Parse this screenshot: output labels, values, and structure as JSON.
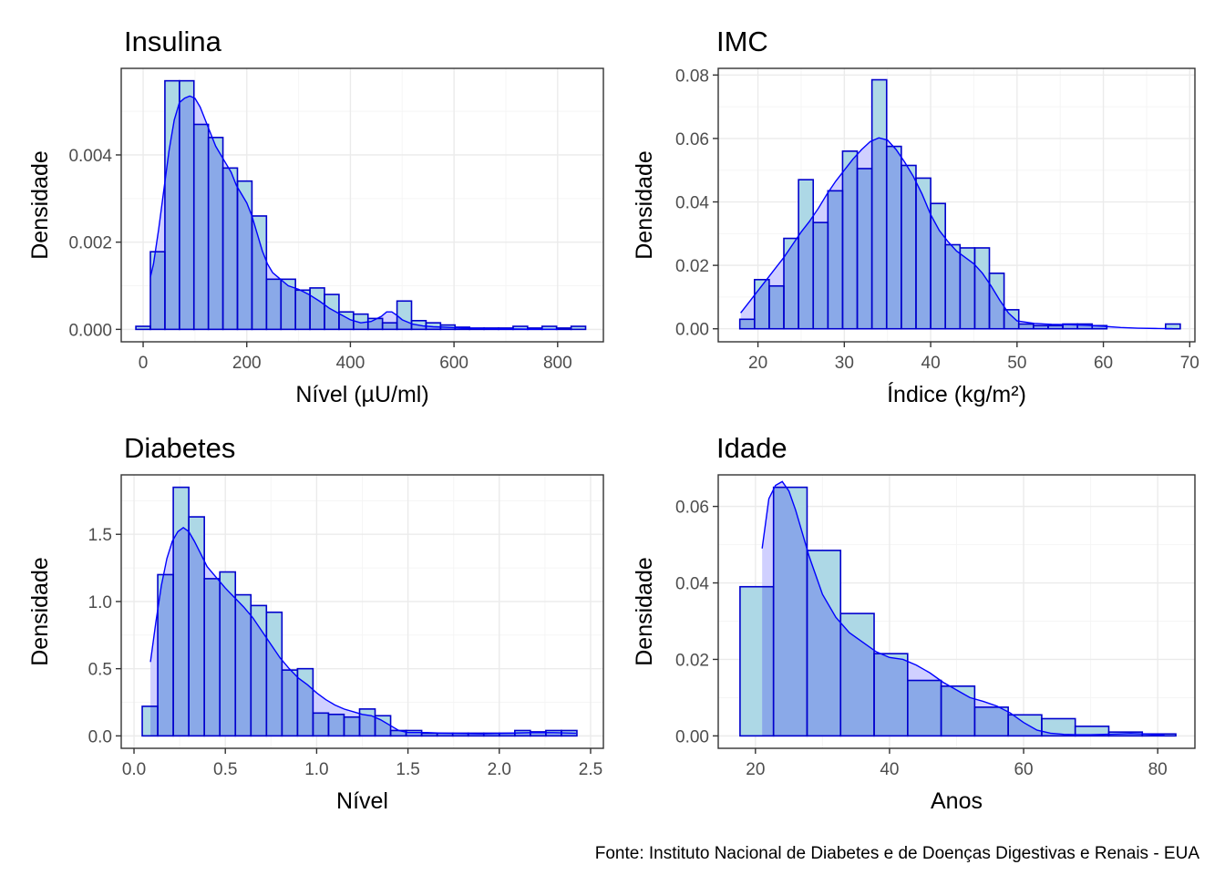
{
  "caption": "Fonte: Instituto Nacional de Diabetes e de Doenças Digestivas e Renais - EUA",
  "colors": {
    "bar_fill_outside": "#add8e6",
    "bar_fill_overlap": "#8aa9e8",
    "density_line": "#0000ff",
    "density_fill": "#c8c8ff",
    "bar_outline": "#0000cd",
    "grid_major": "#ebebeb",
    "grid_minor": "#f5f5f5",
    "panel_border": "#333333"
  },
  "chart_data": [
    {
      "type": "bar",
      "title": "Insulina",
      "xlabel": "Nível (µU/ml)",
      "ylabel": "Densidade",
      "xlim": [
        -42.3,
        888.3
      ],
      "ylim": [
        -0.000285,
        0.005985
      ],
      "xticks": [
        0,
        200,
        400,
        600,
        800
      ],
      "xtick_labels": [
        "0",
        "200",
        "400",
        "600",
        "800"
      ],
      "yticks": [
        0,
        0.002,
        0.004
      ],
      "ytick_labels": [
        "0.000",
        "0.002",
        "0.004"
      ],
      "bins": [
        [
          -14,
          14
        ],
        [
          14,
          42
        ],
        [
          42,
          70
        ],
        [
          70,
          98
        ],
        [
          98,
          126
        ],
        [
          126,
          154
        ],
        [
          154,
          182
        ],
        [
          182,
          210
        ],
        [
          210,
          238
        ],
        [
          238,
          266
        ],
        [
          266,
          294
        ],
        [
          294,
          322
        ],
        [
          322,
          350
        ],
        [
          350,
          378
        ],
        [
          378,
          406
        ],
        [
          406,
          434
        ],
        [
          434,
          462
        ],
        [
          462,
          490
        ],
        [
          490,
          518
        ],
        [
          518,
          546
        ],
        [
          546,
          574
        ],
        [
          574,
          602
        ],
        [
          602,
          630
        ],
        [
          630,
          658
        ],
        [
          658,
          686
        ],
        [
          686,
          714
        ],
        [
          714,
          742
        ],
        [
          742,
          770
        ],
        [
          770,
          798
        ],
        [
          798,
          826
        ],
        [
          826,
          854
        ]
      ],
      "values": [
        7e-05,
        0.00178,
        0.0057,
        0.0057,
        0.0047,
        0.0044,
        0.0037,
        0.0034,
        0.0026,
        0.00115,
        0.00115,
        0.0009,
        0.00095,
        0.0008,
        0.0004,
        0.00035,
        0.00025,
        0.00015,
        0.00065,
        0.0002,
        0.00015,
        0.0001,
        5e-05,
        3e-05,
        3e-05,
        3e-05,
        7e-05,
        3e-05,
        7e-05,
        3e-05,
        7e-05
      ],
      "density": {
        "x": [
          14,
          20,
          30,
          40,
          50,
          60,
          70,
          80,
          90,
          100,
          110,
          120,
          130,
          140,
          150,
          160,
          170,
          180,
          190,
          200,
          210,
          220,
          230,
          240,
          250,
          260,
          270,
          280,
          300,
          320,
          340,
          360,
          380,
          400,
          420,
          440,
          460,
          470,
          480,
          490,
          500,
          520,
          540,
          560,
          580,
          600,
          620,
          650,
          700,
          750,
          800
        ],
        "y": [
          0.0012,
          0.0015,
          0.0023,
          0.0032,
          0.0041,
          0.0048,
          0.0052,
          0.0053,
          0.00535,
          0.0053,
          0.0051,
          0.0048,
          0.0045,
          0.0042,
          0.004,
          0.0038,
          0.0036,
          0.0033,
          0.0031,
          0.0029,
          0.0026,
          0.0022,
          0.0018,
          0.0015,
          0.0013,
          0.0012,
          0.0011,
          0.001,
          0.00092,
          0.0008,
          0.00065,
          0.00048,
          0.00035,
          0.00022,
          0.00015,
          0.00018,
          0.0003,
          0.0004,
          0.0004,
          0.00032,
          0.00022,
          0.00012,
          8e-05,
          6e-05,
          5e-05,
          4e-05,
          3e-05,
          2e-05,
          1e-05,
          5e-06,
          2e-06
        ]
      }
    },
    {
      "type": "bar",
      "title": "IMC",
      "xlabel": "Índice (kg/m²)",
      "ylabel": "Densidade",
      "xlim": [
        15.4,
        70.6
      ],
      "ylim": [
        -0.0041,
        0.0821
      ],
      "xticks": [
        20,
        30,
        40,
        50,
        60,
        70
      ],
      "xtick_labels": [
        "20",
        "30",
        "40",
        "50",
        "60",
        "70"
      ],
      "yticks": [
        0,
        0.02,
        0.04,
        0.06,
        0.08
      ],
      "ytick_labels": [
        "0.00",
        "0.02",
        "0.04",
        "0.06",
        "0.08"
      ],
      "bins": [
        [
          17.9,
          19.6
        ],
        [
          19.6,
          21.3
        ],
        [
          21.3,
          23.0
        ],
        [
          23.0,
          24.7
        ],
        [
          24.7,
          26.4
        ],
        [
          26.4,
          28.1
        ],
        [
          28.1,
          29.8
        ],
        [
          29.8,
          31.5
        ],
        [
          31.5,
          33.2
        ],
        [
          33.2,
          34.9
        ],
        [
          34.9,
          36.6
        ],
        [
          36.6,
          38.3
        ],
        [
          38.3,
          40.0
        ],
        [
          40.0,
          41.7
        ],
        [
          41.7,
          43.4
        ],
        [
          43.4,
          45.1
        ],
        [
          45.1,
          46.8
        ],
        [
          46.8,
          48.5
        ],
        [
          48.5,
          50.2
        ],
        [
          50.2,
          51.9
        ],
        [
          51.9,
          53.6
        ],
        [
          53.6,
          55.3
        ],
        [
          55.3,
          57.0
        ],
        [
          57.0,
          58.7
        ],
        [
          58.7,
          60.4
        ],
        [
          60.4,
          62.1
        ],
        [
          62.1,
          63.8
        ],
        [
          63.8,
          65.5
        ],
        [
          65.5,
          67.2
        ],
        [
          67.2,
          68.9
        ]
      ],
      "values": [
        0.003,
        0.0155,
        0.0135,
        0.0285,
        0.047,
        0.0335,
        0.0435,
        0.056,
        0.0505,
        0.0785,
        0.0575,
        0.0515,
        0.0475,
        0.0395,
        0.0265,
        0.0255,
        0.0255,
        0.0175,
        0.006,
        0.0015,
        0.001,
        0.001,
        0.0015,
        0.0015,
        0.001,
        0.0,
        0.0,
        0.0,
        0.0,
        0.0015
      ],
      "density": {
        "x": [
          18,
          19,
          20,
          21,
          22,
          23,
          24,
          25,
          26,
          27,
          28,
          29,
          30,
          31,
          32,
          33,
          34,
          35,
          36,
          37,
          38,
          39,
          40,
          41,
          42,
          43,
          44,
          45,
          46,
          47,
          48,
          49,
          50,
          52,
          54,
          56,
          58,
          60,
          62,
          64,
          66,
          68
        ],
        "y": [
          0.005,
          0.0085,
          0.012,
          0.0155,
          0.019,
          0.0225,
          0.0265,
          0.0305,
          0.034,
          0.038,
          0.0425,
          0.0465,
          0.05,
          0.0535,
          0.0565,
          0.059,
          0.0602,
          0.0595,
          0.0565,
          0.0525,
          0.048,
          0.0425,
          0.036,
          0.031,
          0.0275,
          0.0245,
          0.0225,
          0.0205,
          0.0175,
          0.0135,
          0.009,
          0.005,
          0.0025,
          0.0017,
          0.0014,
          0.0013,
          0.0011,
          0.0008,
          0.0004,
          0.0002,
          0.0001,
          5e-05
        ]
      }
    },
    {
      "type": "bar",
      "title": "Diabetes",
      "xlabel": "Nível",
      "ylabel": "Densidade",
      "xlim": [
        -0.07,
        2.57
      ],
      "ylim": [
        -0.0925,
        1.9425
      ],
      "xticks": [
        0,
        0.5,
        1,
        1.5,
        2,
        2.5
      ],
      "xtick_labels": [
        "0.0",
        "0.5",
        "1.0",
        "1.5",
        "2.0",
        "2.5"
      ],
      "yticks": [
        0,
        0.5,
        1,
        1.5
      ],
      "ytick_labels": [
        "0.0",
        "0.5",
        "1.0",
        "1.5"
      ],
      "bins": [
        [
          0.045,
          0.13
        ],
        [
          0.13,
          0.215
        ],
        [
          0.215,
          0.3
        ],
        [
          0.3,
          0.385
        ],
        [
          0.385,
          0.47
        ],
        [
          0.47,
          0.555
        ],
        [
          0.555,
          0.64
        ],
        [
          0.64,
          0.725
        ],
        [
          0.725,
          0.81
        ],
        [
          0.81,
          0.895
        ],
        [
          0.895,
          0.98
        ],
        [
          0.98,
          1.065
        ],
        [
          1.065,
          1.15
        ],
        [
          1.15,
          1.235
        ],
        [
          1.235,
          1.32
        ],
        [
          1.32,
          1.405
        ],
        [
          1.405,
          1.49
        ],
        [
          1.49,
          1.575
        ],
        [
          1.575,
          1.66
        ],
        [
          1.66,
          1.745
        ],
        [
          1.745,
          1.83
        ],
        [
          1.83,
          1.915
        ],
        [
          1.915,
          2.0
        ],
        [
          2.0,
          2.085
        ],
        [
          2.085,
          2.17
        ],
        [
          2.17,
          2.255
        ],
        [
          2.255,
          2.34
        ],
        [
          2.34,
          2.425
        ]
      ],
      "values": [
        0.22,
        1.2,
        1.85,
        1.63,
        1.17,
        1.22,
        1.05,
        0.97,
        0.92,
        0.49,
        0.5,
        0.17,
        0.16,
        0.14,
        0.2,
        0.15,
        0.04,
        0.04,
        0.02,
        0.02,
        0.02,
        0.02,
        0.02,
        0.02,
        0.04,
        0.03,
        0.04,
        0.04
      ],
      "density": {
        "x": [
          0.09,
          0.12,
          0.15,
          0.18,
          0.21,
          0.24,
          0.27,
          0.3,
          0.33,
          0.36,
          0.4,
          0.45,
          0.5,
          0.55,
          0.6,
          0.65,
          0.7,
          0.75,
          0.8,
          0.85,
          0.9,
          0.95,
          1.0,
          1.05,
          1.1,
          1.15,
          1.2,
          1.25,
          1.3,
          1.35,
          1.4,
          1.45,
          1.5,
          1.6,
          1.7,
          1.8,
          1.9,
          2.0,
          2.1,
          2.2,
          2.3,
          2.42
        ],
        "y": [
          0.55,
          0.85,
          1.12,
          1.32,
          1.45,
          1.52,
          1.55,
          1.52,
          1.45,
          1.37,
          1.26,
          1.18,
          1.1,
          1.03,
          0.96,
          0.88,
          0.78,
          0.68,
          0.58,
          0.5,
          0.43,
          0.38,
          0.32,
          0.27,
          0.23,
          0.2,
          0.18,
          0.16,
          0.15,
          0.12,
          0.08,
          0.04,
          0.025,
          0.025,
          0.02,
          0.017,
          0.015,
          0.018,
          0.022,
          0.025,
          0.024,
          0.02
        ]
      }
    },
    {
      "type": "bar",
      "title": "Idade",
      "xlabel": "Anos",
      "ylabel": "Densidade",
      "xlim": [
        14.45,
        85.55
      ],
      "ylim": [
        -0.00325,
        0.06825
      ],
      "xticks": [
        20,
        40,
        60,
        80
      ],
      "xtick_labels": [
        "20",
        "40",
        "60",
        "80"
      ],
      "yticks": [
        0,
        0.02,
        0.04,
        0.06
      ],
      "ytick_labels": [
        "0.00",
        "0.02",
        "0.04",
        "0.06"
      ],
      "bins": [
        [
          17.7,
          22.7
        ],
        [
          22.7,
          27.7
        ],
        [
          27.7,
          32.7
        ],
        [
          32.7,
          37.7
        ],
        [
          37.7,
          42.7
        ],
        [
          42.7,
          47.7
        ],
        [
          47.7,
          52.7
        ],
        [
          52.7,
          57.7
        ],
        [
          57.7,
          62.7
        ],
        [
          62.7,
          67.7
        ],
        [
          67.7,
          72.7
        ],
        [
          72.7,
          77.7
        ],
        [
          77.7,
          82.7
        ]
      ],
      "values": [
        0.039,
        0.065,
        0.0485,
        0.032,
        0.0215,
        0.0145,
        0.013,
        0.0075,
        0.0055,
        0.0045,
        0.0025,
        0.001,
        0.0005
      ],
      "density": {
        "x": [
          21,
          22,
          23,
          24,
          25,
          26,
          27,
          28,
          29,
          30,
          32,
          34,
          36,
          38,
          40,
          42,
          44,
          46,
          48,
          50,
          52,
          54,
          56,
          58,
          60,
          62,
          64,
          66,
          68,
          70,
          72,
          74,
          76,
          78,
          80,
          81
        ],
        "y": [
          0.049,
          0.062,
          0.0655,
          0.0665,
          0.064,
          0.059,
          0.053,
          0.047,
          0.042,
          0.037,
          0.031,
          0.027,
          0.0245,
          0.022,
          0.0205,
          0.02,
          0.0185,
          0.0165,
          0.014,
          0.012,
          0.01,
          0.009,
          0.0078,
          0.006,
          0.0035,
          0.0015,
          0.0007,
          0.0004,
          0.0003,
          0.0003,
          0.0004,
          0.0005,
          0.0006,
          0.0005,
          0.0003,
          0.0002
        ]
      }
    }
  ]
}
